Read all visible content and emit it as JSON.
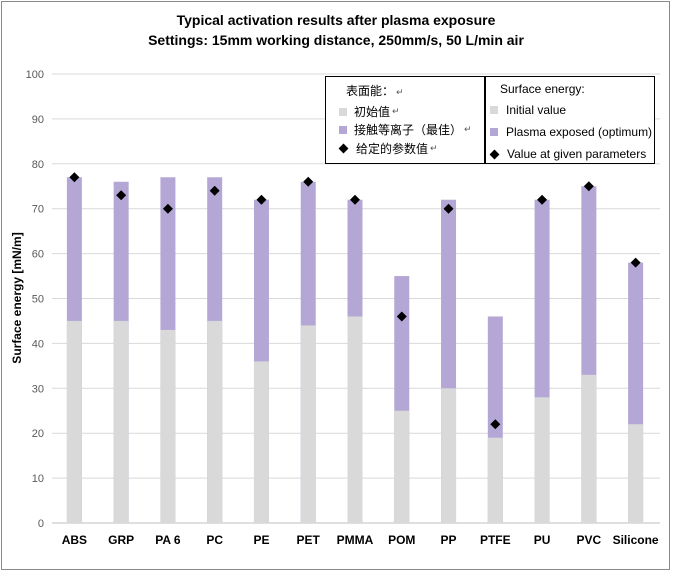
{
  "chart_data": {
    "type": "bar",
    "title": "Typical activation results after plasma exposure",
    "subtitle": "Settings: 15mm working distance, 250mm/s, 50 L/min air",
    "xlabel": "",
    "ylabel": "Surface energy [mN/m]",
    "ylim": [
      0,
      100
    ],
    "yticks": [
      "0",
      "10",
      "20",
      "30",
      "40",
      "50",
      "60",
      "70",
      "80",
      "90",
      "100"
    ],
    "grid": true,
    "legend_placement": "top-right",
    "categories": [
      "ABS",
      "GRP",
      "PA 6",
      "PC",
      "PE",
      "PET",
      "PMMA",
      "POM",
      "PP",
      "PTFE",
      "PU",
      "PVC",
      "Silicone"
    ],
    "series": [
      {
        "name": "Initial value",
        "type": "bar",
        "color": "#d9d9d9",
        "values": [
          45,
          45,
          43,
          45,
          36,
          44,
          46,
          25,
          30,
          19,
          28,
          33,
          22
        ]
      },
      {
        "name": "Plasma exposed (optimum)",
        "type": "bar",
        "color": "#b4a7d6",
        "values": [
          77,
          76,
          77,
          77,
          72,
          76,
          72,
          55,
          72,
          46,
          72,
          75,
          58
        ]
      },
      {
        "name": "Value at given parameters",
        "type": "marker",
        "color": "#000000",
        "values": [
          77,
          73,
          70,
          74,
          72,
          76,
          72,
          46,
          70,
          22,
          72,
          75,
          58
        ]
      }
    ]
  },
  "legend_en": {
    "title": "Surface energy:",
    "items": [
      "Initial value",
      "Plasma exposed (optimum)",
      "Value at given parameters"
    ]
  },
  "legend_cn": {
    "title": "表面能：",
    "items": [
      "初始值",
      "接触等离子（最佳）",
      "给定的参数值"
    ],
    "return_mark": "↵"
  }
}
